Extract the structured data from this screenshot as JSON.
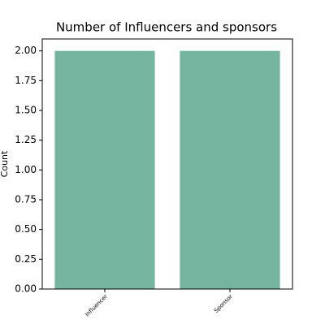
{
  "chart_data": {
    "type": "bar",
    "title": "Number of Influencers and sponsors",
    "ylabel": "Count",
    "categories": [
      "Influencer",
      "Sponsor"
    ],
    "values": [
      2,
      2
    ],
    "color": "#75b5a0",
    "ylim": [
      0,
      2.1
    ],
    "yticks": [
      {
        "value": 0,
        "label": "0.00"
      },
      0.25,
      {
        "value": 0.5,
        "label": "0.50"
      },
      0.75,
      {
        "value": 1,
        "label": "1.00"
      },
      1.25,
      {
        "value": 1.5,
        "label": "1.50"
      },
      1.75,
      {
        "value": 2,
        "label": "2.00"
      }
    ],
    "grid": false
  }
}
